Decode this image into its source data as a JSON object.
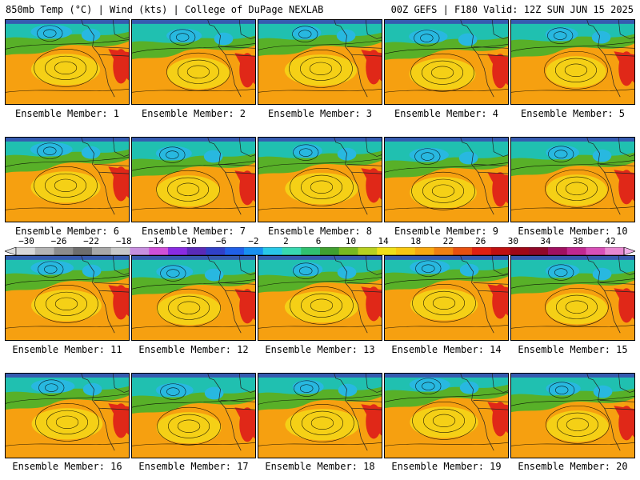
{
  "header": {
    "left_title": "850mb Temp (°C) | Wind (kts) | College of DuPage NEXLAB",
    "right_title": "00Z GEFS | F180 Valid: 12Z SUN JUN 15 2025"
  },
  "panels": [
    {
      "label": "Ensemble Member: 1"
    },
    {
      "label": "Ensemble Member: 2"
    },
    {
      "label": "Ensemble Member: 3"
    },
    {
      "label": "Ensemble Member: 4"
    },
    {
      "label": "Ensemble Member: 5"
    },
    {
      "label": "Ensemble Member: 6"
    },
    {
      "label": "Ensemble Member: 7"
    },
    {
      "label": "Ensemble Member: 8"
    },
    {
      "label": "Ensemble Member: 9"
    },
    {
      "label": "Ensemble Member: 10"
    },
    {
      "label": "Ensemble Member: 11"
    },
    {
      "label": "Ensemble Member: 12"
    },
    {
      "label": "Ensemble Member: 13"
    },
    {
      "label": "Ensemble Member: 14"
    },
    {
      "label": "Ensemble Member: 15"
    },
    {
      "label": "Ensemble Member: 16"
    },
    {
      "label": "Ensemble Member: 17"
    },
    {
      "label": "Ensemble Member: 18"
    },
    {
      "label": "Ensemble Member: 19"
    },
    {
      "label": "Ensemble Member: 20"
    }
  ],
  "colorbar": {
    "labels": [
      "−30",
      "−26",
      "−22",
      "−18",
      "−14",
      "−10",
      "−6",
      "−2",
      "2",
      "6",
      "10",
      "14",
      "18",
      "22",
      "26",
      "30",
      "34",
      "38",
      "42"
    ],
    "colors": [
      "#d8d8d8",
      "#b4b4b4",
      "#8c8c8c",
      "#6e6e6e",
      "#a8a8a8",
      "#c8c8c8",
      "#c890e0",
      "#d050d8",
      "#8a2be2",
      "#5a2ab8",
      "#3040c8",
      "#2060e8",
      "#1890f0",
      "#28c8e8",
      "#38d8b0",
      "#30c070",
      "#40a030",
      "#78b820",
      "#b8d020",
      "#f0e018",
      "#f8c810",
      "#f8a810",
      "#f08010",
      "#e85010",
      "#e02010",
      "#c01010",
      "#a00818",
      "#900828",
      "#a01060",
      "#c02890",
      "#d850b8",
      "#e888d0"
    ]
  },
  "map_palette": {
    "warm": "#f6a010",
    "yellow": "#f4d818",
    "green": "#58b028",
    "teal": "#20c0b0",
    "cyan": "#28b8e0",
    "hot": "#e02818",
    "cold": "#4030b0"
  }
}
